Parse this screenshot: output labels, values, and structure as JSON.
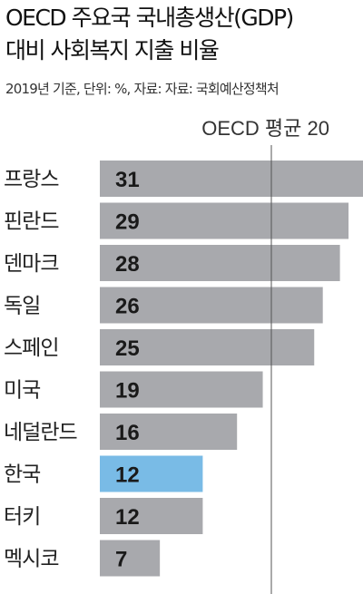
{
  "header": {
    "title_line1": "OECD 주요국 국내총생산(GDP)",
    "title_line2": "대비 사회복지 지출 비율",
    "note": "2019년 기준, 단위: %, 자료: 자료: 국회예산정책처"
  },
  "chart_data": {
    "type": "bar",
    "orientation": "horizontal",
    "title": "OECD 주요국 국내총생산(GDP) 대비 사회복지 지출 비율",
    "categories": [
      "프랑스",
      "핀란드",
      "덴마크",
      "독일",
      "스페인",
      "미국",
      "네덜란드",
      "한국",
      "터키",
      "멕시코"
    ],
    "values": [
      31,
      29,
      28,
      26,
      25,
      19,
      16,
      12,
      12,
      7
    ],
    "highlight": "한국",
    "reference_line": {
      "label": "OECD 평균 20",
      "value": 20
    },
    "xlim": [
      0,
      31
    ],
    "colors": {
      "bar": "#a8a9ad",
      "highlight": "#79bbe6",
      "line": "#555555"
    }
  }
}
